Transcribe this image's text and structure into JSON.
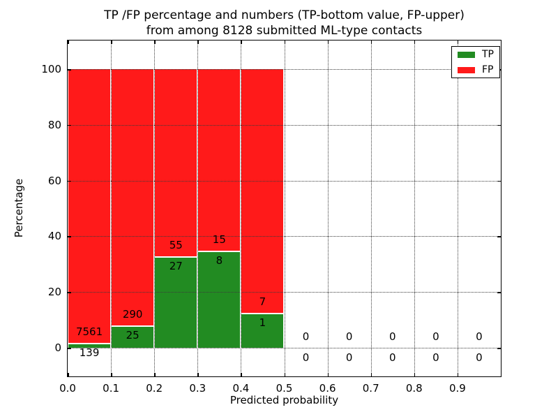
{
  "figure": {
    "title_line1": "TP /FP percentage and numbers (TP-bottom value, FP-upper)",
    "title_line2": "from among 8128 submitted ML-type contacts",
    "xlabel": "Predicted probability",
    "ylabel": "Percentage"
  },
  "legend": {
    "items": [
      {
        "label": "TP",
        "color": "#228B22"
      },
      {
        "label": "FP",
        "color": "#FF1A1A"
      }
    ]
  },
  "chart_data": {
    "type": "bar",
    "subtype": "stacked-percentage-histogram",
    "title": "TP /FP percentage and numbers (TP-bottom value, FP-upper) from among 8128 submitted ML-type contacts",
    "xlabel": "Predicted probability",
    "ylabel": "Percentage",
    "total_contacts": 8128,
    "bin_start": 0.0,
    "bin_width": 0.1,
    "bin_count": 10,
    "categories": [
      "0.0-0.1",
      "0.1-0.2",
      "0.2-0.3",
      "0.3-0.4",
      "0.4-0.5",
      "0.5-0.6",
      "0.6-0.7",
      "0.7-0.8",
      "0.8-0.9",
      "0.9-1.0"
    ],
    "series": [
      {
        "name": "TP",
        "color": "#228B22",
        "counts": [
          139,
          25,
          27,
          8,
          1,
          0,
          0,
          0,
          0,
          0
        ]
      },
      {
        "name": "FP",
        "color": "#FF1A1A",
        "counts": [
          7561,
          290,
          55,
          15,
          7,
          0,
          0,
          0,
          0,
          0
        ]
      }
    ],
    "tp_percent_by_bin": [
      1.805,
      7.937,
      32.927,
      34.783,
      12.5,
      0,
      0,
      0,
      0,
      0
    ],
    "bar_total_percent": 100,
    "y_ticks": [
      0,
      20,
      40,
      60,
      80,
      100
    ],
    "x_tick_labels": [
      "0.0",
      "0.1",
      "0.2",
      "0.3",
      "0.4",
      "0.5",
      "0.6",
      "0.7",
      "0.8",
      "0.9"
    ],
    "xlim": [
      0.0,
      1.0
    ],
    "ylim": [
      -10.3,
      110.3
    ],
    "grid": "dotted",
    "legend_position": "upper right"
  }
}
